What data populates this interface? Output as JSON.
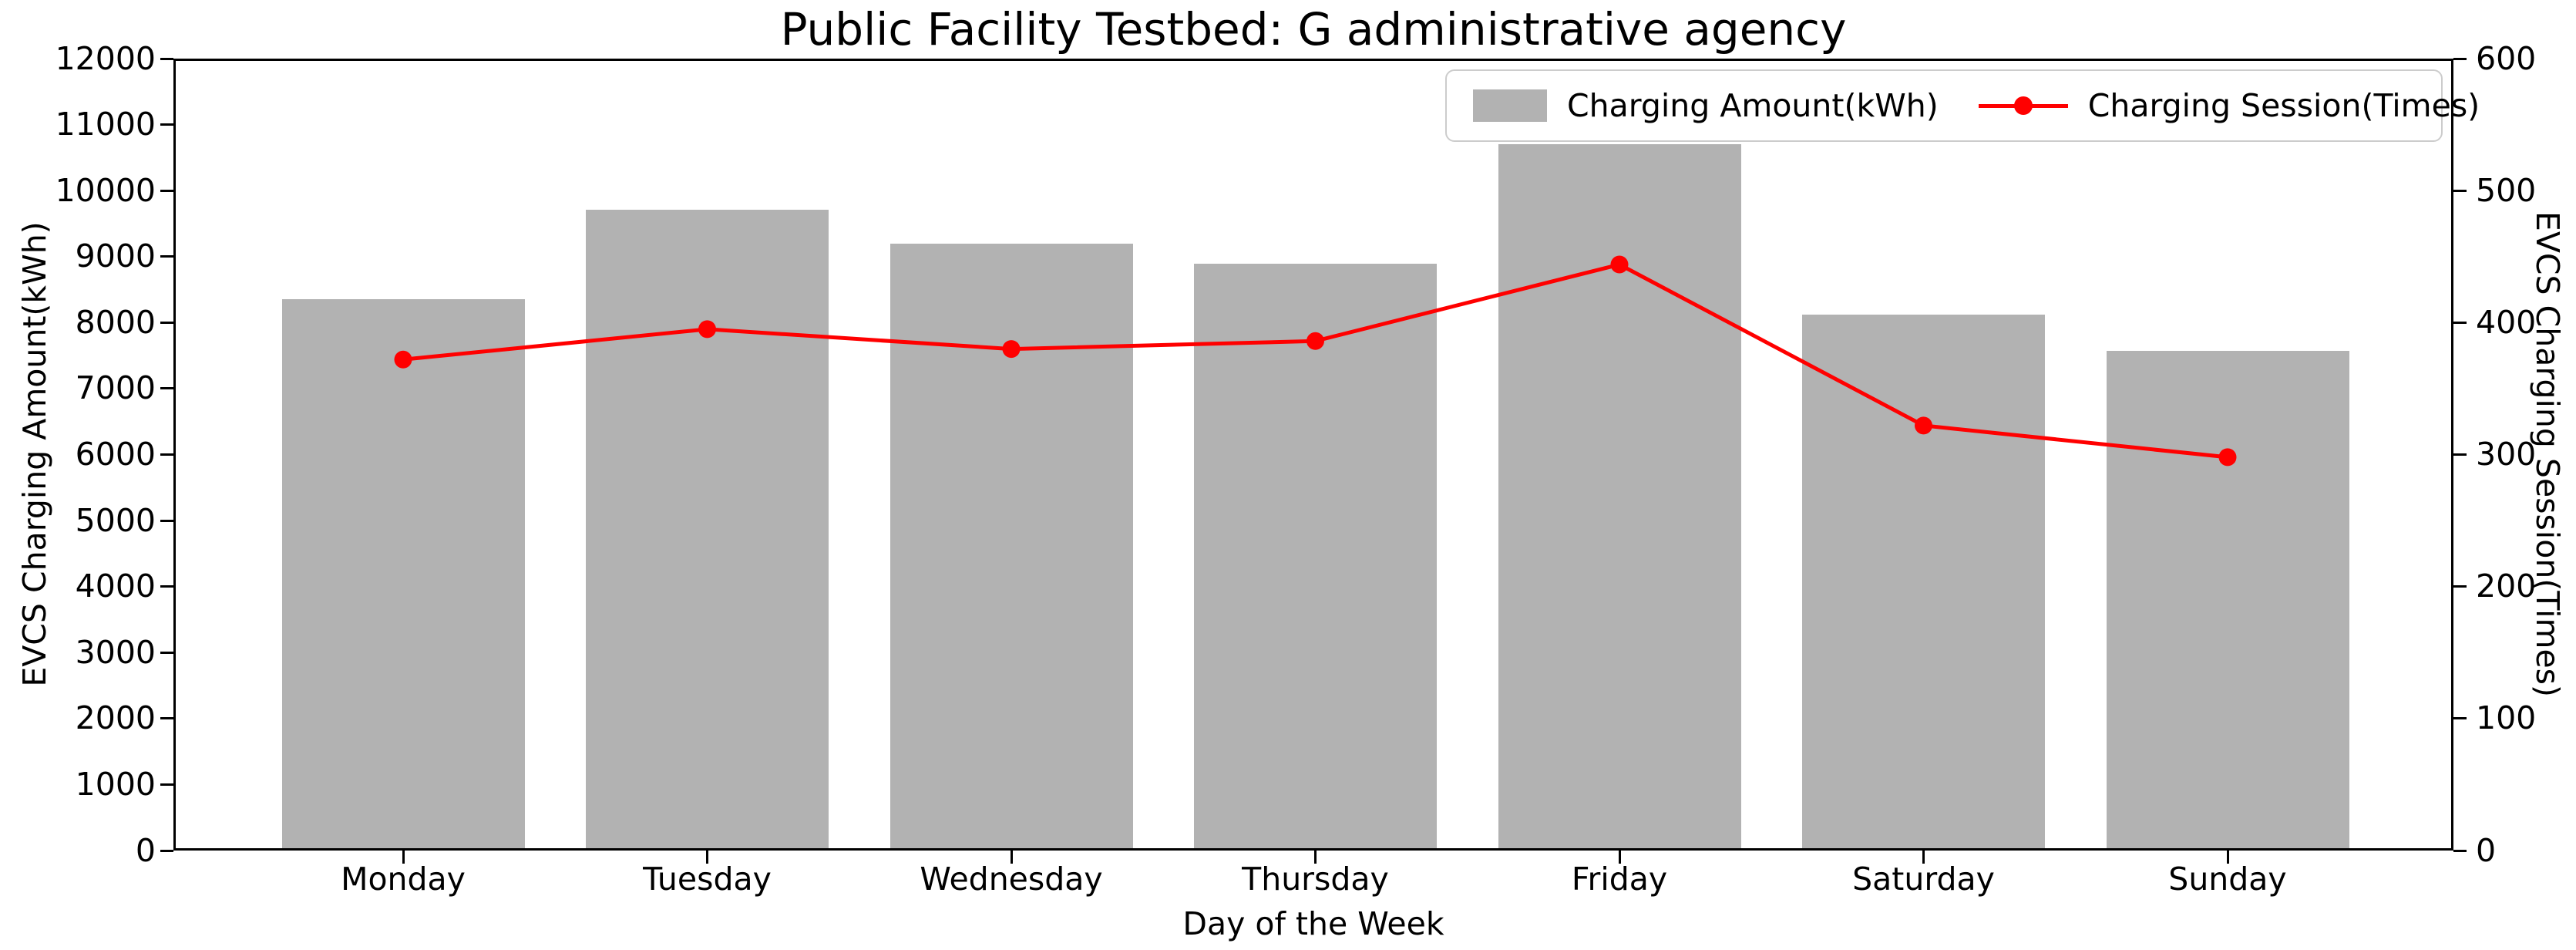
{
  "title": "Public Facility Testbed: G administrative agency",
  "chart_data": {
    "type": "bar",
    "subtype": "bar+line dual axis",
    "categories": [
      "Monday",
      "Tuesday",
      "Wednesday",
      "Thursday",
      "Friday",
      "Saturday",
      "Sunday"
    ],
    "series": [
      {
        "name": "Charging Amount(kWh)",
        "type": "bar",
        "axis": "left",
        "color": "#b2b2b2",
        "values": [
          8360,
          9710,
          9200,
          8890,
          10700,
          8120,
          7570
        ]
      },
      {
        "name": "Charging Session(Times)",
        "type": "line",
        "axis": "right",
        "color": "#ff0000",
        "values": [
          372,
          395,
          380,
          386,
          444,
          322,
          298
        ]
      }
    ],
    "xlabel": "Day of the Week",
    "ylabel_left": "EVCS Charging Amount(kWh)",
    "ylabel_right": "EVCS Charging Session(Times)",
    "ylim_left": [
      0,
      12000
    ],
    "ylim_right": [
      0,
      600
    ],
    "yticks_left": [
      "0",
      "1000",
      "2000",
      "3000",
      "4000",
      "5000",
      "6000",
      "7000",
      "8000",
      "9000",
      "10000",
      "11000",
      "12000"
    ],
    "yticks_right": [
      "0",
      "100",
      "200",
      "300",
      "400",
      "500",
      "600"
    ],
    "legend_position": "upper right",
    "grid": false,
    "spine_color": "#000000",
    "background": "#ffffff"
  }
}
